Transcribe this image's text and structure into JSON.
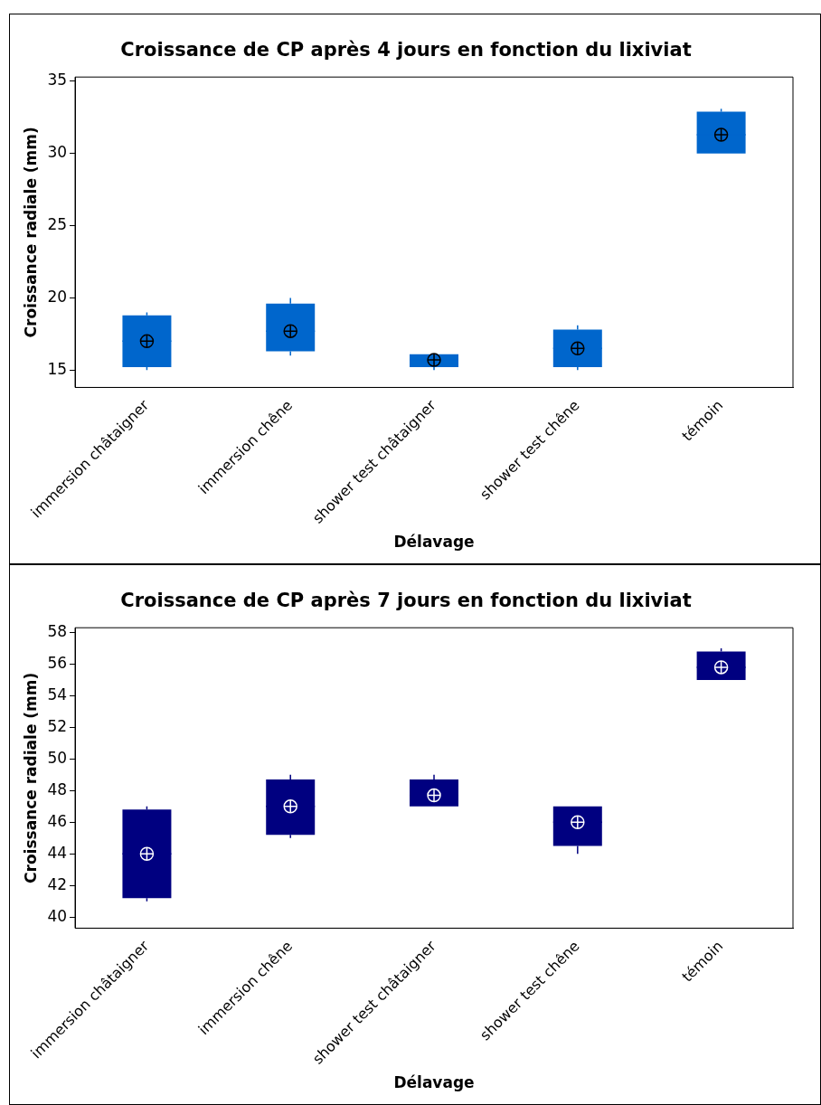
{
  "chart_data": [
    {
      "type": "box",
      "title": "Croissance de CP après 4 jours en fonction du lixiviat",
      "xlabel": "Délavage",
      "ylabel": "Croissance radiale (mm)",
      "categories": [
        "immersion châtaigner",
        "immersion chêne",
        "shower test châtaigner",
        "shower test chêne",
        "témoin"
      ],
      "color": "#0066cc",
      "boxes": [
        {
          "low": 15.0,
          "q1": 15.2,
          "median": 17.0,
          "q3": 18.8,
          "high": 19.0,
          "mean": 17.0
        },
        {
          "low": 16.0,
          "q1": 16.3,
          "median": 17.7,
          "q3": 19.6,
          "high": 20.0,
          "mean": 17.7
        },
        {
          "low": 15.0,
          "q1": 15.2,
          "median": 15.7,
          "q3": 16.1,
          "high": 16.1,
          "mean": 15.7
        },
        {
          "low": 15.0,
          "q1": 15.2,
          "median": 16.5,
          "q3": 17.8,
          "high": 18.1,
          "mean": 16.5
        },
        {
          "low": 30.0,
          "q1": 30.0,
          "median": 31.3,
          "q3": 32.9,
          "high": 33.1,
          "mean": 31.3
        }
      ],
      "ylim": [
        13.8,
        35.3
      ],
      "yticks": [
        15,
        20,
        25,
        30,
        35
      ],
      "grid": false,
      "legend": false
    },
    {
      "type": "box",
      "title": "Croissance de CP après 7 jours en fonction du lixiviat",
      "xlabel": "Délavage",
      "ylabel": "Croissance radiale (mm)",
      "categories": [
        "immersion châtaigner",
        "immersion chêne",
        "shower test châtaigner",
        "shower test chêne",
        "témoin"
      ],
      "color": "#000080",
      "boxes": [
        {
          "low": 41.0,
          "q1": 41.2,
          "median": 44.0,
          "q3": 46.8,
          "high": 47.0,
          "mean": 44.0
        },
        {
          "low": 45.0,
          "q1": 45.2,
          "median": 47.0,
          "q3": 48.7,
          "high": 49.0,
          "mean": 47.0
        },
        {
          "low": 47.0,
          "q1": 47.0,
          "median": 47.7,
          "q3": 48.7,
          "high": 49.0,
          "mean": 47.7
        },
        {
          "low": 44.0,
          "q1": 44.5,
          "median": 46.0,
          "q3": 47.0,
          "high": 47.0,
          "mean": 46.0
        },
        {
          "low": 55.0,
          "q1": 55.0,
          "median": 55.8,
          "q3": 56.8,
          "high": 57.0,
          "mean": 55.8
        }
      ],
      "ylim": [
        39.3,
        58.3
      ],
      "yticks": [
        40,
        42,
        44,
        46,
        48,
        50,
        52,
        54,
        56,
        58
      ],
      "grid": false,
      "legend": false
    }
  ]
}
